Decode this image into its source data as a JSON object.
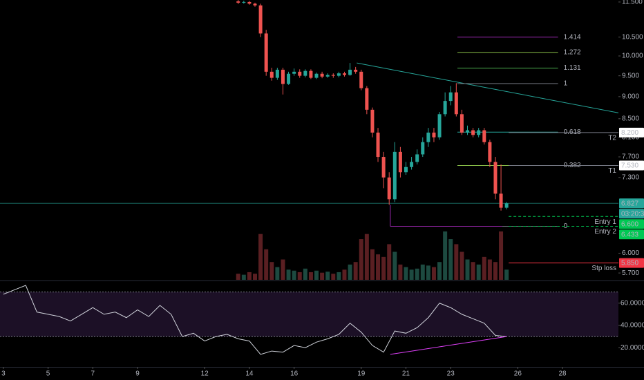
{
  "chart_data": [
    {
      "type": "candlestick",
      "x": [
        13.5,
        13.75,
        14,
        14.25,
        14.5,
        14.75,
        15,
        15.25,
        15.5,
        15.75,
        16,
        16.25,
        16.5,
        16.75,
        17,
        17.25,
        17.5,
        17.75,
        18,
        18.25,
        18.5,
        18.75,
        19,
        19.25,
        19.5,
        19.75,
        20,
        20.25,
        20.5,
        20.75,
        21,
        21.25,
        21.5,
        21.75,
        22,
        22.25,
        22.5,
        22.75,
        23,
        23.25,
        23.5,
        23.75,
        24,
        24.25,
        24.5,
        24.75,
        25,
        25.25,
        25.5
      ],
      "open": [
        11.52,
        11.48,
        11.5,
        11.45,
        11.4,
        10.6,
        9.6,
        9.45,
        9.65,
        9.3,
        9.55,
        9.6,
        9.5,
        9.62,
        9.45,
        9.55,
        9.48,
        9.52,
        9.5,
        9.56,
        9.52,
        9.65,
        9.6,
        9.2,
        8.7,
        8.2,
        7.7,
        7.3,
        6.9,
        7.8,
        7.4,
        7.5,
        7.6,
        7.75,
        8.0,
        8.2,
        8.1,
        8.6,
        8.9,
        9.1,
        8.6,
        8.2,
        8.25,
        8.15,
        8.25,
        8.0,
        7.6,
        7.0,
        6.75
      ],
      "high": [
        11.56,
        11.54,
        11.53,
        11.48,
        11.45,
        10.7,
        9.7,
        9.7,
        9.7,
        9.6,
        9.68,
        9.66,
        9.66,
        9.66,
        9.58,
        9.6,
        9.56,
        9.56,
        9.6,
        9.6,
        9.82,
        9.72,
        9.65,
        9.25,
        8.75,
        8.3,
        7.8,
        7.4,
        8.0,
        7.9,
        7.6,
        7.7,
        7.85,
        8.1,
        8.3,
        8.3,
        8.65,
        9.1,
        9.25,
        9.32,
        8.7,
        8.35,
        8.3,
        8.3,
        8.3,
        8.05,
        7.7,
        7.55,
        6.85
      ],
      "low": [
        11.44,
        11.45,
        11.42,
        11.36,
        10.5,
        9.5,
        9.38,
        9.4,
        9.05,
        9.28,
        9.5,
        9.45,
        9.46,
        9.42,
        9.42,
        9.44,
        9.45,
        9.45,
        9.46,
        9.48,
        9.5,
        9.55,
        9.15,
        8.6,
        8.1,
        7.6,
        7.1,
        6.8,
        6.85,
        7.3,
        7.35,
        7.45,
        7.55,
        7.7,
        7.9,
        8.0,
        8.05,
        8.55,
        8.8,
        8.55,
        8.15,
        8.15,
        8.1,
        8.1,
        7.95,
        7.5,
        6.9,
        6.7,
        6.72
      ],
      "close": [
        11.48,
        11.5,
        11.45,
        11.4,
        10.6,
        9.6,
        9.45,
        9.65,
        9.3,
        9.55,
        9.6,
        9.5,
        9.62,
        9.45,
        9.55,
        9.48,
        9.52,
        9.5,
        9.56,
        9.52,
        9.65,
        9.6,
        9.2,
        8.7,
        8.2,
        7.7,
        7.3,
        6.9,
        7.8,
        7.4,
        7.5,
        7.6,
        7.75,
        8.0,
        8.2,
        8.1,
        8.6,
        8.9,
        9.1,
        8.6,
        8.2,
        8.25,
        8.15,
        8.25,
        8.0,
        7.6,
        7.0,
        6.75,
        6.827
      ],
      "volume": [
        12,
        10,
        15,
        12,
        90,
        60,
        35,
        25,
        40,
        20,
        18,
        15,
        22,
        15,
        18,
        14,
        16,
        12,
        15,
        20,
        30,
        35,
        80,
        90,
        60,
        50,
        45,
        70,
        55,
        30,
        25,
        20,
        22,
        30,
        28,
        25,
        35,
        95,
        80,
        70,
        55,
        40,
        35,
        30,
        45,
        40,
        35,
        95,
        20
      ],
      "up_color": "#26a69a",
      "down_color": "#ef5350",
      "volume_up_color": "#1d4a40",
      "volume_down_color": "#5a1f22",
      "log_scale": true,
      "ylim": [
        5.6,
        11.56
      ],
      "yticks": [
        {
          "value": 5.7,
          "label": "5.700"
        },
        {
          "value": 6,
          "label": "6.000"
        },
        {
          "value": 7.3,
          "label": "7.300"
        },
        {
          "value": 7.7,
          "label": "7.700"
        },
        {
          "value": 8.1,
          "label": "8.100"
        },
        {
          "value": 8.5,
          "label": "8.500"
        },
        {
          "value": 9,
          "label": "9.000"
        },
        {
          "value": 9.5,
          "label": "9.500"
        },
        {
          "value": 10,
          "label": "10.000"
        },
        {
          "value": 10.5,
          "label": "10.500"
        },
        {
          "value": 11.5,
          "label": "11.500"
        }
      ],
      "xlim": [
        2.85,
        30.5
      ],
      "xticks": [
        3,
        5,
        7,
        9,
        12,
        14,
        16,
        19,
        21,
        23,
        26,
        28
      ],
      "last_price": {
        "value": 6.827,
        "countdown": "03:20:30",
        "color": "#26a69a"
      },
      "trendline": {
        "x": [
          18.8,
          30.5
        ],
        "y": [
          9.82,
          8.63
        ],
        "color": "#26a69a"
      },
      "fib": {
        "x_start": 20.3,
        "x_anchor": 23.3,
        "x_base_end": 25.3,
        "x_end": 27.8,
        "base_color": "#9c27b0",
        "levels": [
          {
            "ratio": 1.414,
            "price": 10.5,
            "color": "#9c27b0"
          },
          {
            "ratio": 1.272,
            "price": 10.09,
            "color": "#8bc34a"
          },
          {
            "ratio": 1.131,
            "price": 9.69,
            "color": "#4caf50"
          },
          {
            "ratio": 1,
            "price": 9.31,
            "color": "#787b86"
          },
          {
            "ratio": 0.618,
            "price": 8.21,
            "color": "#26a69a"
          },
          {
            "ratio": 0.382,
            "price": 7.53,
            "color": "#8bc34a"
          },
          {
            "ratio": 0,
            "price": 6.433,
            "color": "#787b86"
          }
        ]
      },
      "levels": [
        {
          "value": 8.2,
          "label": "8.200",
          "name": "T2",
          "color": "#ffffff",
          "text_color": "#000000",
          "line_color": "#787b86",
          "dashed": false
        },
        {
          "value": 7.53,
          "label": "7.530",
          "name": "T1",
          "color": "#ffffff",
          "text_color": "#000000",
          "line_color": "#787b86",
          "dashed": false
        },
        {
          "value": 6.6,
          "label": "6.600",
          "name": "Entry 1",
          "color": "#00c853",
          "text_color": "#000000",
          "line_color": "#00c853",
          "dashed": true
        },
        {
          "value": 6.433,
          "label": "6.433",
          "name": "Entry 2",
          "color": "#00c853",
          "text_color": "#000000",
          "line_color": "#00c853",
          "dashed": true
        },
        {
          "value": 5.85,
          "label": "5.850",
          "name": "Stp loss",
          "color": "#f23645",
          "text_color": "#ffffff",
          "line_color": "#f23645",
          "dashed": false
        }
      ]
    },
    {
      "type": "line",
      "x": [
        3,
        3.5,
        4,
        4.5,
        5,
        5.5,
        6,
        6.5,
        7,
        7.5,
        8,
        8.5,
        9,
        9.5,
        10,
        10.5,
        11,
        11.5,
        12,
        12.5,
        13,
        13.5,
        14,
        14.5,
        15,
        15.5,
        16,
        16.5,
        17,
        17.5,
        18,
        18.5,
        19,
        19.5,
        20,
        20.5,
        21,
        21.5,
        22,
        22.5,
        23,
        23.5,
        24,
        24.5,
        25,
        25.5
      ],
      "values": [
        68,
        72,
        76,
        52,
        50,
        48,
        44,
        50,
        56,
        50,
        52,
        47,
        54,
        48,
        58,
        50,
        30,
        33,
        26,
        30,
        32,
        28,
        26,
        14,
        17,
        16,
        22,
        20,
        25,
        28,
        32,
        42,
        34,
        22,
        16,
        35,
        33,
        38,
        47,
        60,
        56,
        50,
        46,
        42,
        31,
        30
      ],
      "color": "#d1d4dc",
      "ylim": [
        3.4,
        79.1
      ],
      "yticks": [
        {
          "value": 20,
          "label": "20.0000"
        },
        {
          "value": 40,
          "label": "40.0000"
        },
        {
          "value": 60,
          "label": "60.0000"
        }
      ],
      "bands": [
        30,
        70
      ],
      "band_color": "#1c1026",
      "divergence": {
        "x": [
          20.3,
          25.5
        ],
        "y": [
          14,
          30
        ],
        "color": "#e040fb"
      }
    }
  ]
}
